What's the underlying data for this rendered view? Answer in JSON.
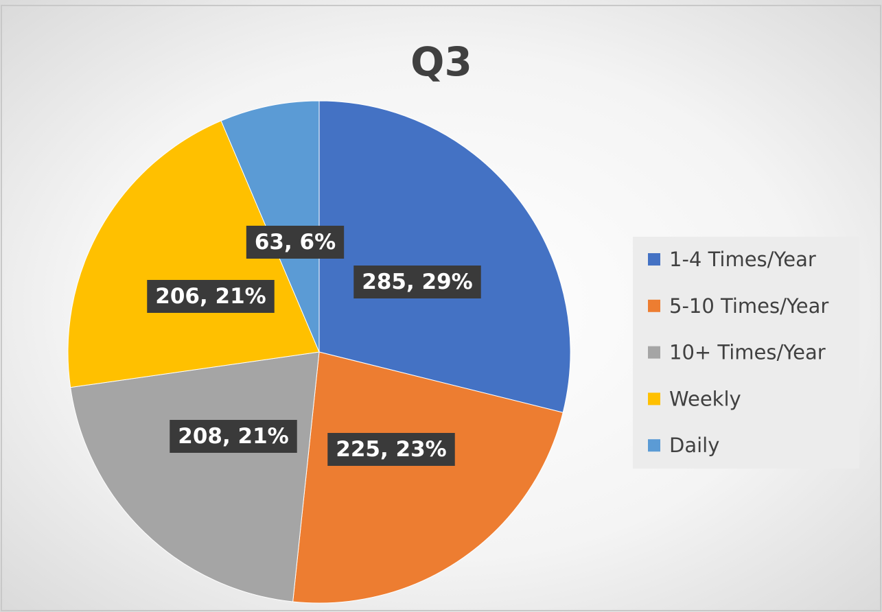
{
  "chart_data": {
    "type": "pie",
    "title": "Q3",
    "categories": [
      "1-4 Times/Year",
      "5-10 Times/Year",
      "10+ Times/Year",
      "Weekly",
      "Daily"
    ],
    "values": [
      285,
      225,
      208,
      206,
      63
    ],
    "value_labels": [
      "285, 29%",
      "225, 23%",
      "208, 21%",
      "206, 21%",
      "63, 6%"
    ],
    "colors": [
      "#4472c4",
      "#ed7d31",
      "#a5a5a5",
      "#ffc000",
      "#5b9bd5"
    ],
    "legend": "right"
  }
}
